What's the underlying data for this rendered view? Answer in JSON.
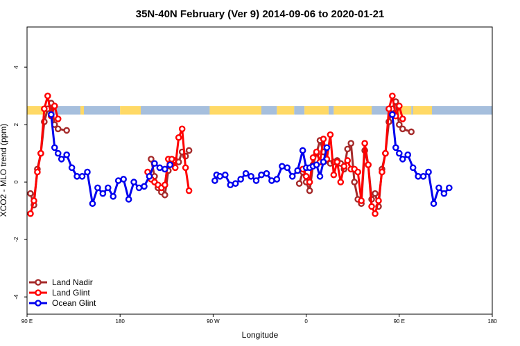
{
  "chart_data": {
    "type": "line",
    "title": "35N-40N February (Ver 9)   2014-09-06 to 2020-01-21",
    "xlabel": "Longitude",
    "ylabel": "XCO2 - MLO trend (ppm)",
    "xlim": [
      -90,
      180
    ],
    "ylim": [
      -4.6,
      5.4
    ],
    "x_ticks": [
      {
        "value": -90,
        "label": "90 E"
      },
      {
        "value": -36,
        "label": "180"
      },
      {
        "value": 18,
        "label": "90 W"
      },
      {
        "value": 72,
        "label": "0"
      },
      {
        "value": 126,
        "label": "90 E"
      },
      {
        "value": 180,
        "label": "180"
      }
    ],
    "y_ticks": [
      {
        "value": -4,
        "label": "-4"
      },
      {
        "value": -2,
        "label": "-2"
      },
      {
        "value": 0,
        "label": "0"
      },
      {
        "value": 2,
        "label": "2"
      },
      {
        "value": 4,
        "label": "4"
      }
    ],
    "grid": false,
    "legend_position": "bottom-left",
    "surface_band": {
      "y_range": [
        2.35,
        2.65
      ],
      "land_color": "#ffd966",
      "ocean_color": "#a6bfdd",
      "land_segments": [
        [
          -90,
          -78
        ],
        [
          -59,
          -57
        ],
        [
          -58,
          -57
        ],
        [
          -36,
          -24
        ],
        [
          16,
          46
        ],
        [
          55,
          65
        ],
        [
          71,
          85
        ],
        [
          88,
          110
        ],
        [
          125,
          133
        ],
        [
          134,
          145
        ]
      ],
      "ocean_segments": [
        [
          -78,
          -59
        ],
        [
          -57,
          -36
        ],
        [
          -24,
          16
        ],
        [
          46,
          55
        ],
        [
          65,
          71
        ],
        [
          85,
          88
        ],
        [
          110,
          125
        ],
        [
          133,
          134
        ],
        [
          145,
          180
        ]
      ]
    },
    "series": [
      {
        "name": "Land Nadir",
        "color": "#a52a2a",
        "points": [
          [
            -88,
            -0.4
          ],
          [
            -86,
            -0.8
          ],
          [
            -84,
            0.45
          ],
          [
            -82,
            1.0
          ],
          [
            -80,
            2.1
          ],
          [
            -78,
            2.55
          ],
          [
            -76,
            2.75
          ],
          [
            -74,
            2.0
          ],
          [
            -72,
            1.85
          ],
          [
            -67,
            1.8
          ],
          null,
          [
            -18,
            0.8
          ],
          [
            -16,
            0.2
          ],
          [
            -14,
            -0.2
          ],
          [
            -12,
            -0.35
          ],
          [
            -10,
            -0.45
          ],
          [
            -8,
            0.4
          ],
          [
            -6,
            0.65
          ],
          [
            -4,
            0.75
          ],
          [
            -2,
            0.7
          ],
          [
            0,
            1.05
          ],
          [
            2,
            0.9
          ],
          [
            4,
            1.1
          ],
          null,
          [
            68,
            -0.05
          ],
          [
            70,
            0.35
          ],
          [
            72,
            0.0
          ],
          [
            74,
            -0.3
          ],
          [
            76,
            0.6
          ],
          [
            78,
            1.0
          ],
          [
            80,
            1.45
          ],
          [
            82,
            1.05
          ],
          [
            84,
            0.75
          ],
          [
            86,
            0.65
          ],
          [
            88,
            0.7
          ],
          [
            90,
            0.75
          ],
          [
            92,
            0.65
          ],
          [
            94,
            0.45
          ],
          [
            96,
            1.15
          ],
          [
            98,
            1.35
          ],
          [
            100,
            0.0
          ],
          [
            102,
            -0.6
          ],
          [
            104,
            -0.75
          ],
          [
            106,
            1.1
          ],
          [
            108,
            0.6
          ],
          [
            110,
            -0.6
          ],
          [
            112,
            -0.4
          ],
          [
            114,
            -0.85
          ],
          [
            116,
            0.45
          ],
          [
            118,
            1.0
          ],
          [
            120,
            2.1
          ],
          [
            122,
            2.55
          ],
          [
            124,
            2.8
          ],
          [
            126,
            2.0
          ],
          [
            128,
            1.85
          ],
          [
            133,
            1.75
          ]
        ]
      },
      {
        "name": "Land Glint",
        "color": "#ff0000",
        "points": [
          [
            -88,
            -1.1
          ],
          [
            -86,
            -0.65
          ],
          [
            -84,
            0.35
          ],
          [
            -82,
            1.0
          ],
          [
            -80,
            2.55
          ],
          [
            -78,
            3.0
          ],
          [
            -76,
            2.3
          ],
          [
            -74,
            2.65
          ],
          [
            -72,
            2.2
          ],
          null,
          [
            -20,
            0.35
          ],
          [
            -18,
            0.1
          ],
          [
            -16,
            0.0
          ],
          [
            -14,
            -0.1
          ],
          [
            -12,
            -0.2
          ],
          [
            -10,
            -0.1
          ],
          [
            -8,
            0.8
          ],
          [
            -6,
            0.8
          ],
          [
            -4,
            0.5
          ],
          [
            -2,
            1.55
          ],
          [
            0,
            1.85
          ],
          [
            2,
            0.5
          ],
          [
            4,
            -0.3
          ],
          null,
          [
            70,
            0.45
          ],
          [
            72,
            0.2
          ],
          [
            74,
            0.0
          ],
          [
            76,
            0.85
          ],
          [
            78,
            1.05
          ],
          [
            80,
            0.7
          ],
          [
            82,
            1.5
          ],
          [
            84,
            0.8
          ],
          [
            86,
            1.65
          ],
          [
            88,
            0.25
          ],
          [
            90,
            0.7
          ],
          [
            92,
            0.0
          ],
          [
            94,
            0.55
          ],
          [
            96,
            0.75
          ],
          [
            98,
            0.45
          ],
          [
            100,
            0.45
          ],
          [
            102,
            0.35
          ],
          [
            104,
            -0.65
          ],
          [
            106,
            1.35
          ],
          [
            108,
            0.6
          ],
          [
            110,
            -0.85
          ],
          [
            112,
            -1.1
          ],
          [
            114,
            -0.65
          ],
          [
            116,
            0.35
          ],
          [
            118,
            1.0
          ],
          [
            120,
            2.55
          ],
          [
            122,
            3.0
          ],
          [
            124,
            2.3
          ],
          [
            126,
            2.65
          ],
          [
            128,
            2.2
          ]
        ]
      },
      {
        "name": "Ocean Glint",
        "color": "#0000ee",
        "points": [
          [
            -76,
            2.35
          ],
          [
            -74,
            1.2
          ],
          [
            -72,
            1.0
          ],
          [
            -70,
            0.8
          ],
          [
            -67,
            0.95
          ],
          [
            -64,
            0.5
          ],
          [
            -61,
            0.2
          ],
          [
            -58,
            0.2
          ],
          [
            -55,
            0.35
          ],
          [
            -52,
            -0.75
          ],
          [
            -49,
            -0.2
          ],
          [
            -46,
            -0.4
          ],
          [
            -43,
            -0.2
          ],
          [
            -40,
            -0.5
          ],
          [
            -37,
            0.05
          ],
          [
            -34,
            0.1
          ],
          [
            -31,
            -0.6
          ],
          [
            -28,
            0.0
          ],
          [
            -25,
            -0.2
          ],
          [
            -22,
            -0.15
          ],
          [
            -19,
            0.2
          ],
          [
            -16,
            0.65
          ],
          [
            -13,
            0.5
          ],
          [
            -10,
            0.45
          ],
          [
            -7,
            0.6
          ],
          null,
          [
            19,
            0.05
          ],
          [
            20,
            0.25
          ],
          [
            22,
            0.2
          ],
          [
            25,
            0.25
          ],
          [
            28,
            -0.1
          ],
          [
            31,
            -0.05
          ],
          [
            34,
            0.1
          ],
          [
            37,
            0.3
          ],
          [
            40,
            0.2
          ],
          [
            43,
            0.05
          ],
          [
            46,
            0.25
          ],
          [
            49,
            0.3
          ],
          [
            52,
            0.05
          ],
          [
            55,
            0.1
          ],
          [
            58,
            0.55
          ],
          [
            61,
            0.5
          ],
          [
            64,
            0.2
          ],
          [
            67,
            0.4
          ],
          [
            70,
            1.1
          ],
          [
            72,
            0.5
          ],
          [
            74,
            0.5
          ],
          [
            76,
            0.55
          ],
          [
            78,
            0.6
          ],
          [
            80,
            0.2
          ],
          [
            82,
            0.7
          ],
          [
            84,
            1.2
          ],
          null,
          [
            122,
            2.35
          ],
          [
            124,
            1.2
          ],
          [
            126,
            1.0
          ],
          [
            128,
            0.8
          ],
          [
            131,
            0.95
          ],
          [
            134,
            0.5
          ],
          [
            137,
            0.2
          ],
          [
            140,
            0.2
          ],
          [
            143,
            0.35
          ],
          [
            146,
            -0.75
          ],
          [
            149,
            -0.2
          ],
          [
            152,
            -0.4
          ],
          [
            155,
            -0.2
          ]
        ]
      }
    ]
  }
}
